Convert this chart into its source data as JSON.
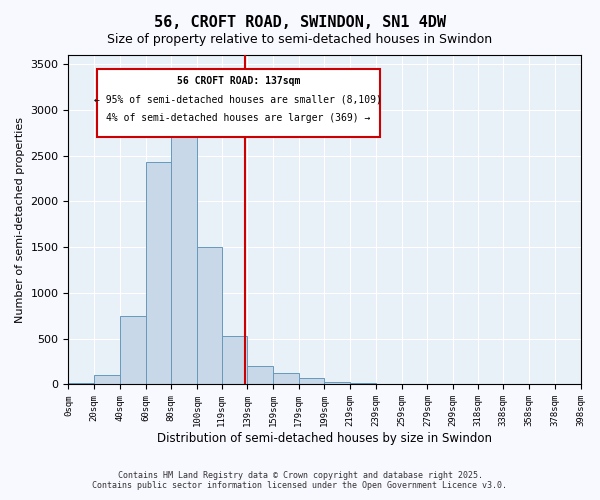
{
  "title": "56, CROFT ROAD, SWINDON, SN1 4DW",
  "subtitle": "Size of property relative to semi-detached houses in Swindon",
  "xlabel": "Distribution of semi-detached houses by size in Swindon",
  "ylabel": "Number of semi-detached properties",
  "bar_color": "#c8d8e8",
  "bar_edge_color": "#6699bb",
  "vline_value": 137,
  "vline_color": "#cc0000",
  "annotation_title": "56 CROFT ROAD: 137sqm",
  "annotation_line1": "← 95% of semi-detached houses are smaller (8,109)",
  "annotation_line2": "4% of semi-detached houses are larger (369) →",
  "bin_labels": [
    "0sqm",
    "20sqm",
    "40sqm",
    "60sqm",
    "80sqm",
    "100sqm",
    "119sqm",
    "139sqm",
    "159sqm",
    "179sqm",
    "199sqm",
    "219sqm",
    "239sqm",
    "259sqm",
    "279sqm",
    "299sqm",
    "318sqm",
    "338sqm",
    "358sqm",
    "378sqm",
    "398sqm"
  ],
  "bin_edges": [
    0,
    20,
    40,
    60,
    80,
    100,
    119,
    139,
    159,
    179,
    199,
    219,
    239,
    259,
    279,
    299,
    318,
    338,
    358,
    378,
    398
  ],
  "bar_heights": [
    20,
    100,
    750,
    2430,
    2950,
    1500,
    530,
    200,
    120,
    70,
    30,
    15,
    8,
    5,
    3,
    2,
    1,
    1,
    0,
    0
  ],
  "ylim": [
    0,
    3600
  ],
  "yticks": [
    0,
    500,
    1000,
    1500,
    2000,
    2500,
    3000,
    3500
  ],
  "background_color": "#e8f0f8",
  "footer_line1": "Contains HM Land Registry data © Crown copyright and database right 2025.",
  "footer_line2": "Contains public sector information licensed under the Open Government Licence v3.0."
}
